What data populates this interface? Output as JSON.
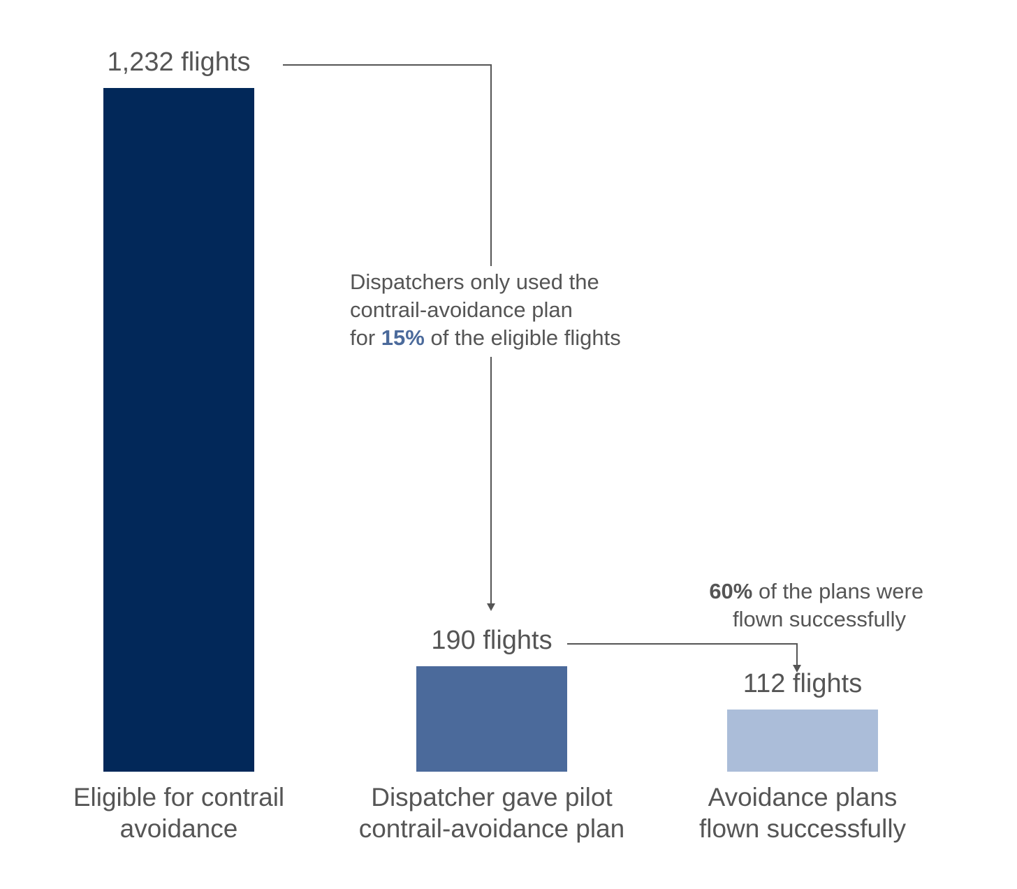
{
  "chart_data": {
    "type": "bar",
    "title": "",
    "xlabel": "",
    "ylabel": "",
    "ylim": [
      0,
      1232
    ],
    "grid": false,
    "categories": [
      [
        "Eligible for contrail",
        "avoidance"
      ],
      [
        "Dispatcher gave pilot",
        "contrail-avoidance plan"
      ],
      [
        "Avoidance plans",
        "flown successfully"
      ]
    ],
    "values": [
      1232,
      190,
      112
    ],
    "value_labels": [
      "1,232 flights",
      "190 flights",
      "112 flights"
    ],
    "colors": [
      "#022859",
      "#4b6a9b",
      "#abbdd9"
    ]
  },
  "annotations": {
    "dispatch_note": {
      "line1": "Dispatchers only used the",
      "line2": "contrail-avoidance plan",
      "line3_prefix": "for ",
      "line3_highlight": "15%",
      "line3_suffix": " of the eligible flights",
      "highlight_color": "#4b6a9b"
    },
    "flown_note": {
      "line1_highlight": "60%",
      "line1_suffix": " of the plans were",
      "line2": "flown successfully"
    }
  }
}
